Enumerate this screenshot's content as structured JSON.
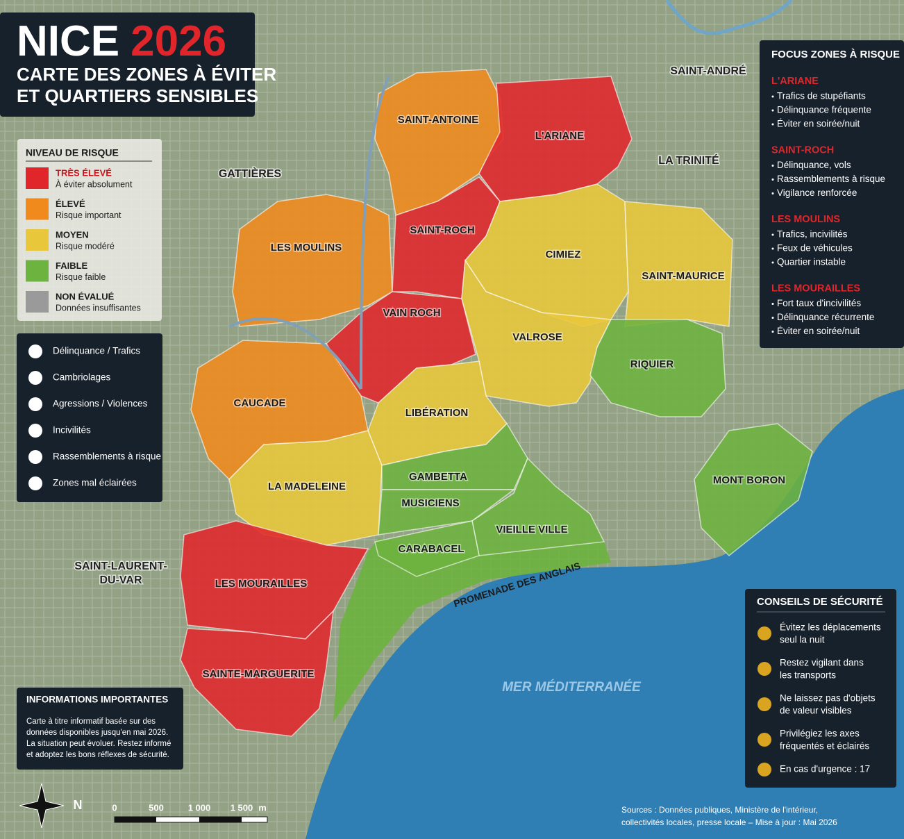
{
  "header": {
    "title": "NICE",
    "year": "2026",
    "subtitle_lines": [
      "CARTE DES ZONES À ÉVITER",
      "ET QUARTIERS SENSIBLES"
    ]
  },
  "risk_legend": {
    "title": "NIVEAU DE RISQUE",
    "levels": [
      {
        "label": "TRÈS ÉLEVÉ",
        "description": "À éviter absolument",
        "color": "#e0262b"
      },
      {
        "label": "ÉLEVÉ",
        "description": "Risque important",
        "color": "#f08a1c"
      },
      {
        "label": "MOYEN",
        "description": "Risque modéré",
        "color": "#e9c73a"
      },
      {
        "label": "FAIBLE",
        "description": "Risque faible",
        "color": "#6db33f"
      },
      {
        "label": "NON ÉVALUÉ",
        "description": "Données insuffisantes",
        "color": "#9a9a9a"
      }
    ]
  },
  "icon_legend": {
    "items": [
      "Délinquance / Trafics",
      "Cambriolages",
      "Agressions / Violences",
      "Incivilités",
      "Rassemblements à risque",
      "Zones mal éclairées"
    ]
  },
  "zones": [
    {
      "name": "SAINT-ANTOINE",
      "color": "#f08a1c"
    },
    {
      "name": "L'ARIANE",
      "color": "#e0262b"
    },
    {
      "name": "LES MOULINS",
      "color": "#f08a1c"
    },
    {
      "name": "SAINT-ROCH",
      "color": "#e0262b"
    },
    {
      "name": "CIMIEZ",
      "color": "#e9c73a"
    },
    {
      "name": "SAINT-MAURICE",
      "color": "#e9c73a"
    },
    {
      "name": "VAIN ROCH",
      "color": "#e0262b"
    },
    {
      "name": "VALROSE",
      "color": "#e9c73a"
    },
    {
      "name": "RIQUIER",
      "color": "#6db33f"
    },
    {
      "name": "CAUCADE",
      "color": "#f08a1c"
    },
    {
      "name": "LIBÉRATION",
      "color": "#e9c73a"
    },
    {
      "name": "LA MADELEINE",
      "color": "#e9c73a"
    },
    {
      "name": "GAMBETTA",
      "color": "#6db33f"
    },
    {
      "name": "MUSICIENS",
      "color": "#6db33f"
    },
    {
      "name": "VIEILLE VILLE",
      "color": "#6db33f"
    },
    {
      "name": "CARABACEL",
      "color": "#6db33f"
    },
    {
      "name": "MONT BORON",
      "color": "#6db33f"
    },
    {
      "name": "LES MOURAILLES",
      "color": "#e0262b"
    },
    {
      "name": "SAINTE-MARGUERITE",
      "color": "#e0262b"
    }
  ],
  "places": [
    [
      "GATTIÈRES"
    ],
    [
      "SAINT-ANDRÉ"
    ],
    [
      "LA TRINITÉ"
    ],
    [
      "SAINT-LAURENT-",
      "DU-VAR"
    ]
  ],
  "sea": "MER MÉDITERRANÉE",
  "road": "PROMENADE DES ANGLAIS",
  "focus": {
    "title": "FOCUS ZONES À RISQUE",
    "sections": [
      {
        "name": "L'ARIANE",
        "items": [
          "Trafics de stupéfiants",
          "Délinquance fréquente",
          "Éviter en soirée/nuit"
        ]
      },
      {
        "name": "SAINT-ROCH",
        "items": [
          "Délinquance, vols",
          "Rassemblements à risque",
          "Vigilance renforcée"
        ]
      },
      {
        "name": "LES MOULINS",
        "items": [
          "Trafics, incivilités",
          "Feux de véhicules",
          "Quartier instable"
        ]
      },
      {
        "name": "LES MOURAILLES",
        "items": [
          "Fort taux d'incivilités",
          "Délinquance récurrente",
          "Éviter en soirée/nuit"
        ]
      }
    ]
  },
  "info": {
    "title": "INFORMATIONS IMPORTANTES",
    "lines": [
      "Carte à titre informatif basée sur des",
      "données disponibles jusqu'en mai 2026.",
      "La situation peut évoluer. Restez informé",
      "et adoptez les bons réflexes de sécurité."
    ]
  },
  "safety": {
    "title": "CONSEILS DE SÉCURITÉ",
    "tips": [
      [
        "Évitez les déplacements",
        "seul la nuit"
      ],
      [
        "Restez vigilant dans",
        "les transports"
      ],
      [
        "Ne laissez pas d'objets",
        "de valeur visibles"
      ],
      [
        "Privilégiez les axes",
        "fréquentés et éclairés"
      ],
      [
        "En cas d'urgence : 17"
      ]
    ]
  },
  "scale": {
    "ticks": [
      "0",
      "500",
      "1 000",
      "1 500"
    ],
    "unit": "m"
  },
  "compass": "N",
  "sources": [
    "Sources : Données publiques, Ministère de l'intérieur,",
    "collectivités locales, presse locale – Mise à jour : Mai 2026"
  ]
}
